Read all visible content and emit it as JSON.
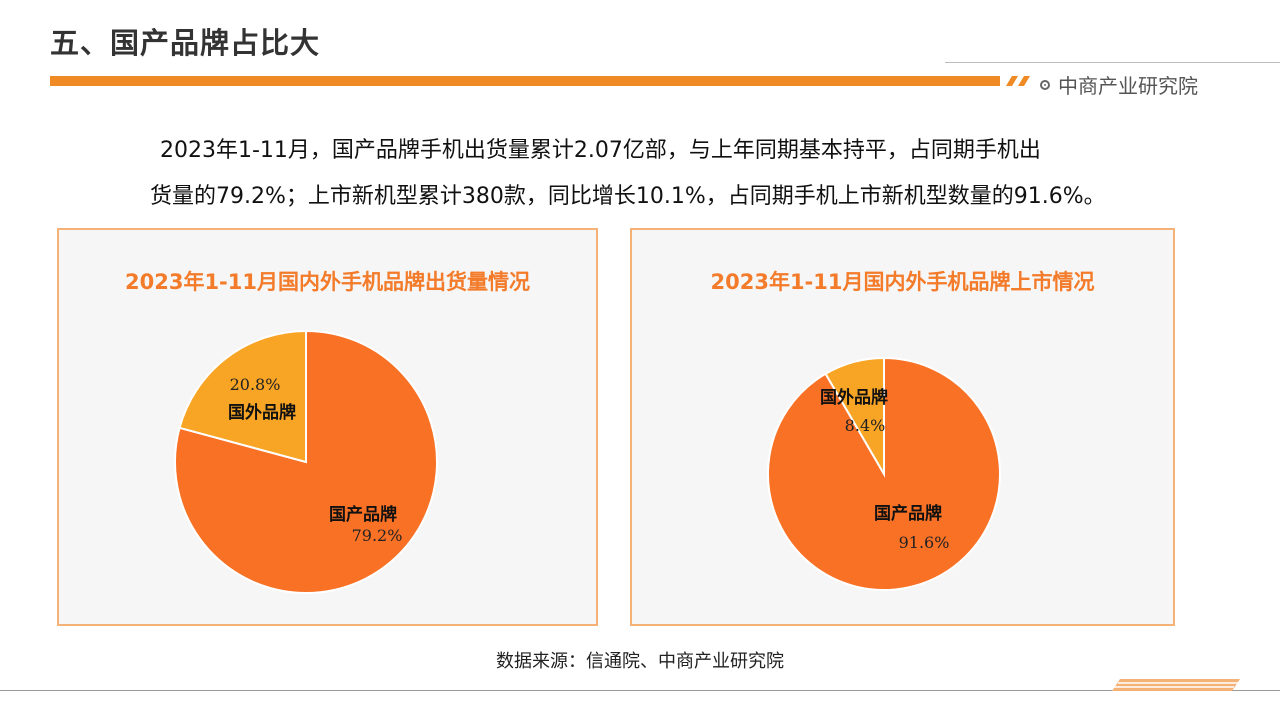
{
  "header": {
    "title": "五、国产品牌占比大",
    "brand": "中商产业研究院",
    "brand_icon": "target-dot-icon",
    "accent_color": "#f08a24"
  },
  "summary": {
    "line1": "2023年1-11月，国产品牌手机出货量累计2.07亿部，与上年同期基本持平，占同期手机出",
    "line2": "货量的79.2%；上市新机型累计380款，同比增长10.1%，占同期手机上市新机型数量的91.6%。"
  },
  "chart_data": [
    {
      "type": "pie",
      "title": "2023年1-11月国内外手机品牌出货量情况",
      "slices": [
        {
          "label": "国产品牌",
          "value": 79.2,
          "value_label": "79.2%",
          "color": "#f97125"
        },
        {
          "label": "国外品牌",
          "value": 20.8,
          "value_label": "20.8%",
          "color": "#f8a424"
        }
      ]
    },
    {
      "type": "pie",
      "title": "2023年1-11月国内外手机品牌上市情况",
      "slices": [
        {
          "label": "国产品牌",
          "value": 91.6,
          "value_label": "91.6%",
          "color": "#f97125"
        },
        {
          "label": "国外品牌",
          "value": 8.4,
          "value_label": "8.4%",
          "color": "#f8a424"
        }
      ]
    }
  ],
  "footer": {
    "source": "数据来源：信通院、中商产业研究院"
  }
}
